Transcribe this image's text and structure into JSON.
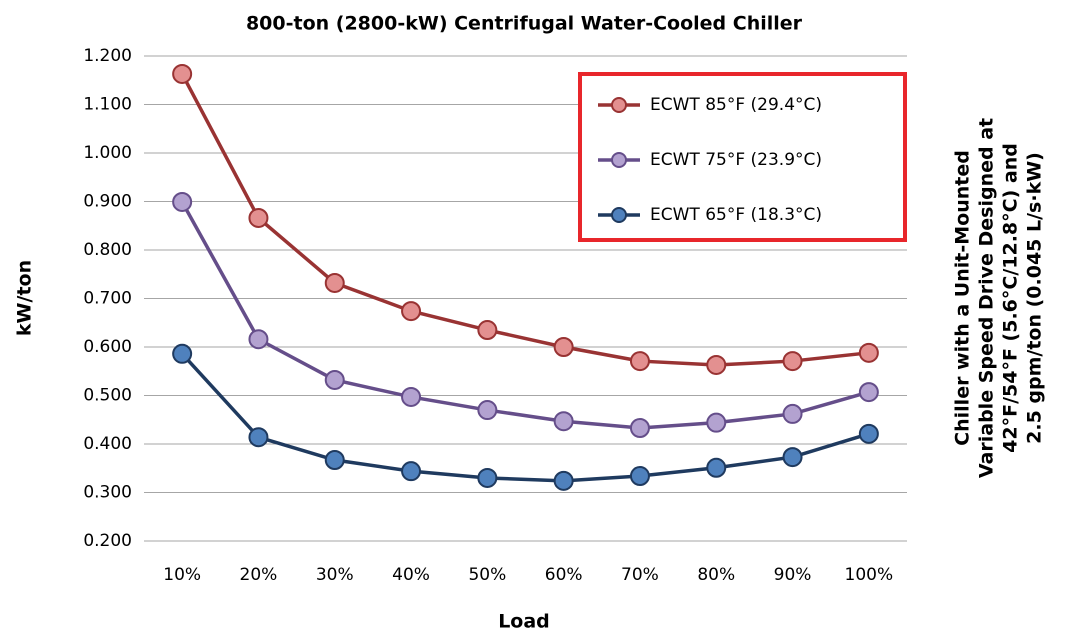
{
  "chart_data": {
    "type": "line",
    "title": "800-ton (2800-kW) Centrifugal Water-Cooled Chiller",
    "x_label": "Load",
    "y_label": "kW/ton",
    "annotation": [
      "Chiller with a Unit-Mounted",
      "Variable Speed Drive Designed at",
      "42°F/54°F (5.6°C/12.8°C) and",
      "2.5 gpm/ton (0.045 L/s·kW)"
    ],
    "categories": [
      "10%",
      "20%",
      "30%",
      "40%",
      "50%",
      "60%",
      "70%",
      "80%",
      "90%",
      "100%"
    ],
    "series": [
      {
        "name": "ECWT 85°F (29.4°C)",
        "color": "#993333",
        "marker_color": "#e39090",
        "values": [
          1.163,
          0.866,
          0.732,
          0.674,
          0.635,
          0.6,
          0.571,
          0.563,
          0.571,
          0.588
        ]
      },
      {
        "name": "ECWT 75°F (23.9°C)",
        "color": "#654e8a",
        "marker_color": "#b3a2d0",
        "values": [
          0.899,
          0.616,
          0.532,
          0.497,
          0.47,
          0.447,
          0.433,
          0.444,
          0.462,
          0.507
        ]
      },
      {
        "name": "ECWT 65°F (18.3°C)",
        "color": "#1f3a5f",
        "marker_color": "#4f81bd",
        "values": [
          0.586,
          0.414,
          0.367,
          0.344,
          0.33,
          0.324,
          0.334,
          0.351,
          0.373,
          0.421
        ]
      }
    ],
    "ylim": [
      0.2,
      1.2
    ],
    "yticks": [
      {
        "value": 0.2,
        "label": "0.200"
      },
      {
        "value": 0.3,
        "label": "0.300"
      },
      {
        "value": 0.4,
        "label": "0.400"
      },
      {
        "value": 0.5,
        "label": "0.500"
      },
      {
        "value": 0.6,
        "label": "0.600"
      },
      {
        "value": 0.7,
        "label": "0.700"
      },
      {
        "value": 0.8,
        "label": "0.800"
      },
      {
        "value": 0.9,
        "label": "0.900"
      },
      {
        "value": 1.0,
        "label": "1.000"
      },
      {
        "value": 1.1,
        "label": "1.100"
      },
      {
        "value": 1.2,
        "label": "1.200"
      }
    ],
    "grid": true,
    "legend_position": "upper right",
    "legend_border_color": "#e8262b"
  }
}
